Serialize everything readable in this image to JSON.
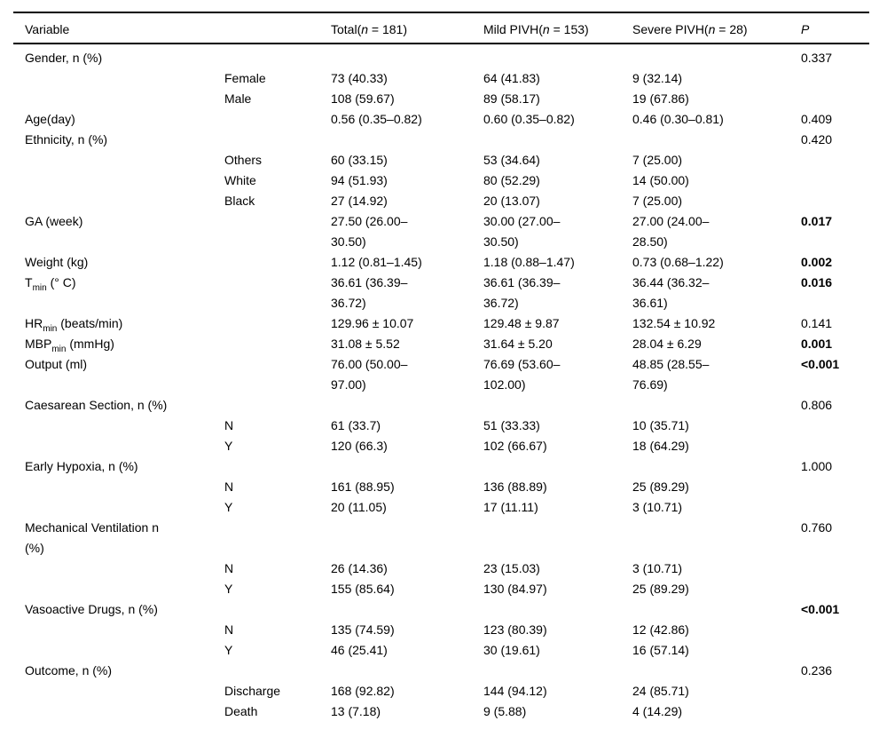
{
  "table": {
    "columns": [
      {
        "key": "variable",
        "parts": [
          {
            "t": "Variable"
          }
        ]
      },
      {
        "key": "subcategory",
        "parts": []
      },
      {
        "key": "total",
        "parts": [
          {
            "t": "Total("
          },
          {
            "t": "n",
            "italic": true
          },
          {
            "t": " = 181)"
          }
        ]
      },
      {
        "key": "mild-pivh",
        "parts": [
          {
            "t": "Mild PIVH("
          },
          {
            "t": "n",
            "italic": true
          },
          {
            "t": " = 153)"
          }
        ]
      },
      {
        "key": "severe-pivh",
        "parts": [
          {
            "t": "Severe PIVH("
          },
          {
            "t": "n",
            "italic": true
          },
          {
            "t": " = 28)"
          }
        ]
      },
      {
        "key": "p-value",
        "parts": [
          {
            "t": "P",
            "italic": true
          }
        ]
      }
    ],
    "rows": [
      {
        "variable": [
          {
            "t": "Gender, n (%)"
          }
        ],
        "sub": "",
        "total": "",
        "mild": "",
        "severe": "",
        "p": "0.337",
        "p_bold": false
      },
      {
        "variable": [],
        "sub": "Female",
        "total": "73 (40.33)",
        "mild": "64 (41.83)",
        "severe": "9 (32.14)",
        "p": "",
        "p_bold": false
      },
      {
        "variable": [],
        "sub": "Male",
        "total": "108 (59.67)",
        "mild": "89 (58.17)",
        "severe": "19 (67.86)",
        "p": "",
        "p_bold": false
      },
      {
        "variable": [
          {
            "t": "Age(day)"
          }
        ],
        "sub": "",
        "total": "0.56 (0.35–0.82)",
        "mild": "0.60 (0.35–0.82)",
        "severe": "0.46 (0.30–0.81)",
        "p": "0.409",
        "p_bold": false
      },
      {
        "variable": [
          {
            "t": "Ethnicity, n (%)"
          }
        ],
        "sub": "",
        "total": "",
        "mild": "",
        "severe": "",
        "p": "0.420",
        "p_bold": false
      },
      {
        "variable": [],
        "sub": "Others",
        "total": "60 (33.15)",
        "mild": "53 (34.64)",
        "severe": "7 (25.00)",
        "p": "",
        "p_bold": false
      },
      {
        "variable": [],
        "sub": "White",
        "total": "94 (51.93)",
        "mild": "80 (52.29)",
        "severe": "14 (50.00)",
        "p": "",
        "p_bold": false
      },
      {
        "variable": [],
        "sub": "Black",
        "total": "27 (14.92)",
        "mild": "20 (13.07)",
        "severe": "7 (25.00)",
        "p": "",
        "p_bold": false
      },
      {
        "variable": [
          {
            "t": "GA (week)"
          }
        ],
        "sub": "",
        "total": "27.50 (26.00–\n30.50)",
        "mild": "30.00 (27.00–\n30.50)",
        "severe": "27.00 (24.00–\n28.50)",
        "p": "0.017",
        "p_bold": true
      },
      {
        "variable": [
          {
            "t": "Weight (kg)"
          }
        ],
        "sub": "",
        "total": "1.12 (0.81–1.45)",
        "mild": "1.18 (0.88–1.47)",
        "severe": "0.73 (0.68–1.22)",
        "p": "0.002",
        "p_bold": true
      },
      {
        "variable": [
          {
            "t": "T"
          },
          {
            "t": "min",
            "sub": true
          },
          {
            "t": " (° C)"
          }
        ],
        "sub": "",
        "total": "36.61 (36.39–\n36.72)",
        "mild": "36.61 (36.39–\n36.72)",
        "severe": "36.44 (36.32–\n36.61)",
        "p": "0.016",
        "p_bold": true
      },
      {
        "variable": [
          {
            "t": "HR"
          },
          {
            "t": "min",
            "sub": true
          },
          {
            "t": " (beats/min)"
          }
        ],
        "sub": "",
        "total": "129.96 ± 10.07",
        "mild": "129.48 ± 9.87",
        "severe": "132.54 ± 10.92",
        "p": "0.141",
        "p_bold": false
      },
      {
        "variable": [
          {
            "t": "MBP"
          },
          {
            "t": "min",
            "sub": true
          },
          {
            "t": " (mmHg)"
          }
        ],
        "sub": "",
        "total": "31.08 ± 5.52",
        "mild": "31.64 ± 5.20",
        "severe": "28.04 ± 6.29",
        "p": "0.001",
        "p_bold": true
      },
      {
        "variable": [
          {
            "t": "Output (ml)"
          }
        ],
        "sub": "",
        "total": "76.00 (50.00–\n97.00)",
        "mild": "76.69 (53.60–\n102.00)",
        "severe": "48.85 (28.55–\n76.69)",
        "p": "<0.001",
        "p_bold": true
      },
      {
        "variable": [
          {
            "t": "Caesarean Section, n (%)"
          }
        ],
        "sub": "",
        "total": "",
        "mild": "",
        "severe": "",
        "p": "0.806",
        "p_bold": false
      },
      {
        "variable": [],
        "sub": "N",
        "total": "61 (33.7)",
        "mild": "51 (33.33)",
        "severe": "10 (35.71)",
        "p": "",
        "p_bold": false
      },
      {
        "variable": [],
        "sub": "Y",
        "total": "120 (66.3)",
        "mild": "102 (66.67)",
        "severe": "18 (64.29)",
        "p": "",
        "p_bold": false
      },
      {
        "variable": [
          {
            "t": "Early Hypoxia, n (%)"
          }
        ],
        "sub": "",
        "total": "",
        "mild": "",
        "severe": "",
        "p": "1.000",
        "p_bold": false
      },
      {
        "variable": [],
        "sub": "N",
        "total": "161 (88.95)",
        "mild": "136 (88.89)",
        "severe": "25 (89.29)",
        "p": "",
        "p_bold": false
      },
      {
        "variable": [],
        "sub": "Y",
        "total": "20 (11.05)",
        "mild": "17 (11.11)",
        "severe": "3 (10.71)",
        "p": "",
        "p_bold": false
      },
      {
        "variable": [
          {
            "t": "Mechanical Ventilation n\n(%)"
          }
        ],
        "sub": "",
        "total": "",
        "mild": "",
        "severe": "",
        "p": "0.760",
        "p_bold": false
      },
      {
        "variable": [],
        "sub": "N",
        "total": "26 (14.36)",
        "mild": "23 (15.03)",
        "severe": "3 (10.71)",
        "p": "",
        "p_bold": false
      },
      {
        "variable": [],
        "sub": "Y",
        "total": "155 (85.64)",
        "mild": "130 (84.97)",
        "severe": "25 (89.29)",
        "p": "",
        "p_bold": false
      },
      {
        "variable": [
          {
            "t": "Vasoactive Drugs, n (%)"
          }
        ],
        "sub": "",
        "total": "",
        "mild": "",
        "severe": "",
        "p": "<0.001",
        "p_bold": true
      },
      {
        "variable": [],
        "sub": "N",
        "total": "135 (74.59)",
        "mild": "123 (80.39)",
        "severe": "12 (42.86)",
        "p": "",
        "p_bold": false
      },
      {
        "variable": [],
        "sub": "Y",
        "total": "46 (25.41)",
        "mild": "30 (19.61)",
        "severe": "16 (57.14)",
        "p": "",
        "p_bold": false
      },
      {
        "variable": [
          {
            "t": "Outcome, n (%)"
          }
        ],
        "sub": "",
        "total": "",
        "mild": "",
        "severe": "",
        "p": "0.236",
        "p_bold": false
      },
      {
        "variable": [],
        "sub": "Discharge",
        "total": "168 (92.82)",
        "mild": "144 (94.12)",
        "severe": "24 (85.71)",
        "p": "",
        "p_bold": false
      },
      {
        "variable": [],
        "sub": "Death",
        "total": "13 (7.18)",
        "mild": "9 (5.88)",
        "severe": "4 (14.29)",
        "p": "",
        "p_bold": false
      }
    ]
  }
}
